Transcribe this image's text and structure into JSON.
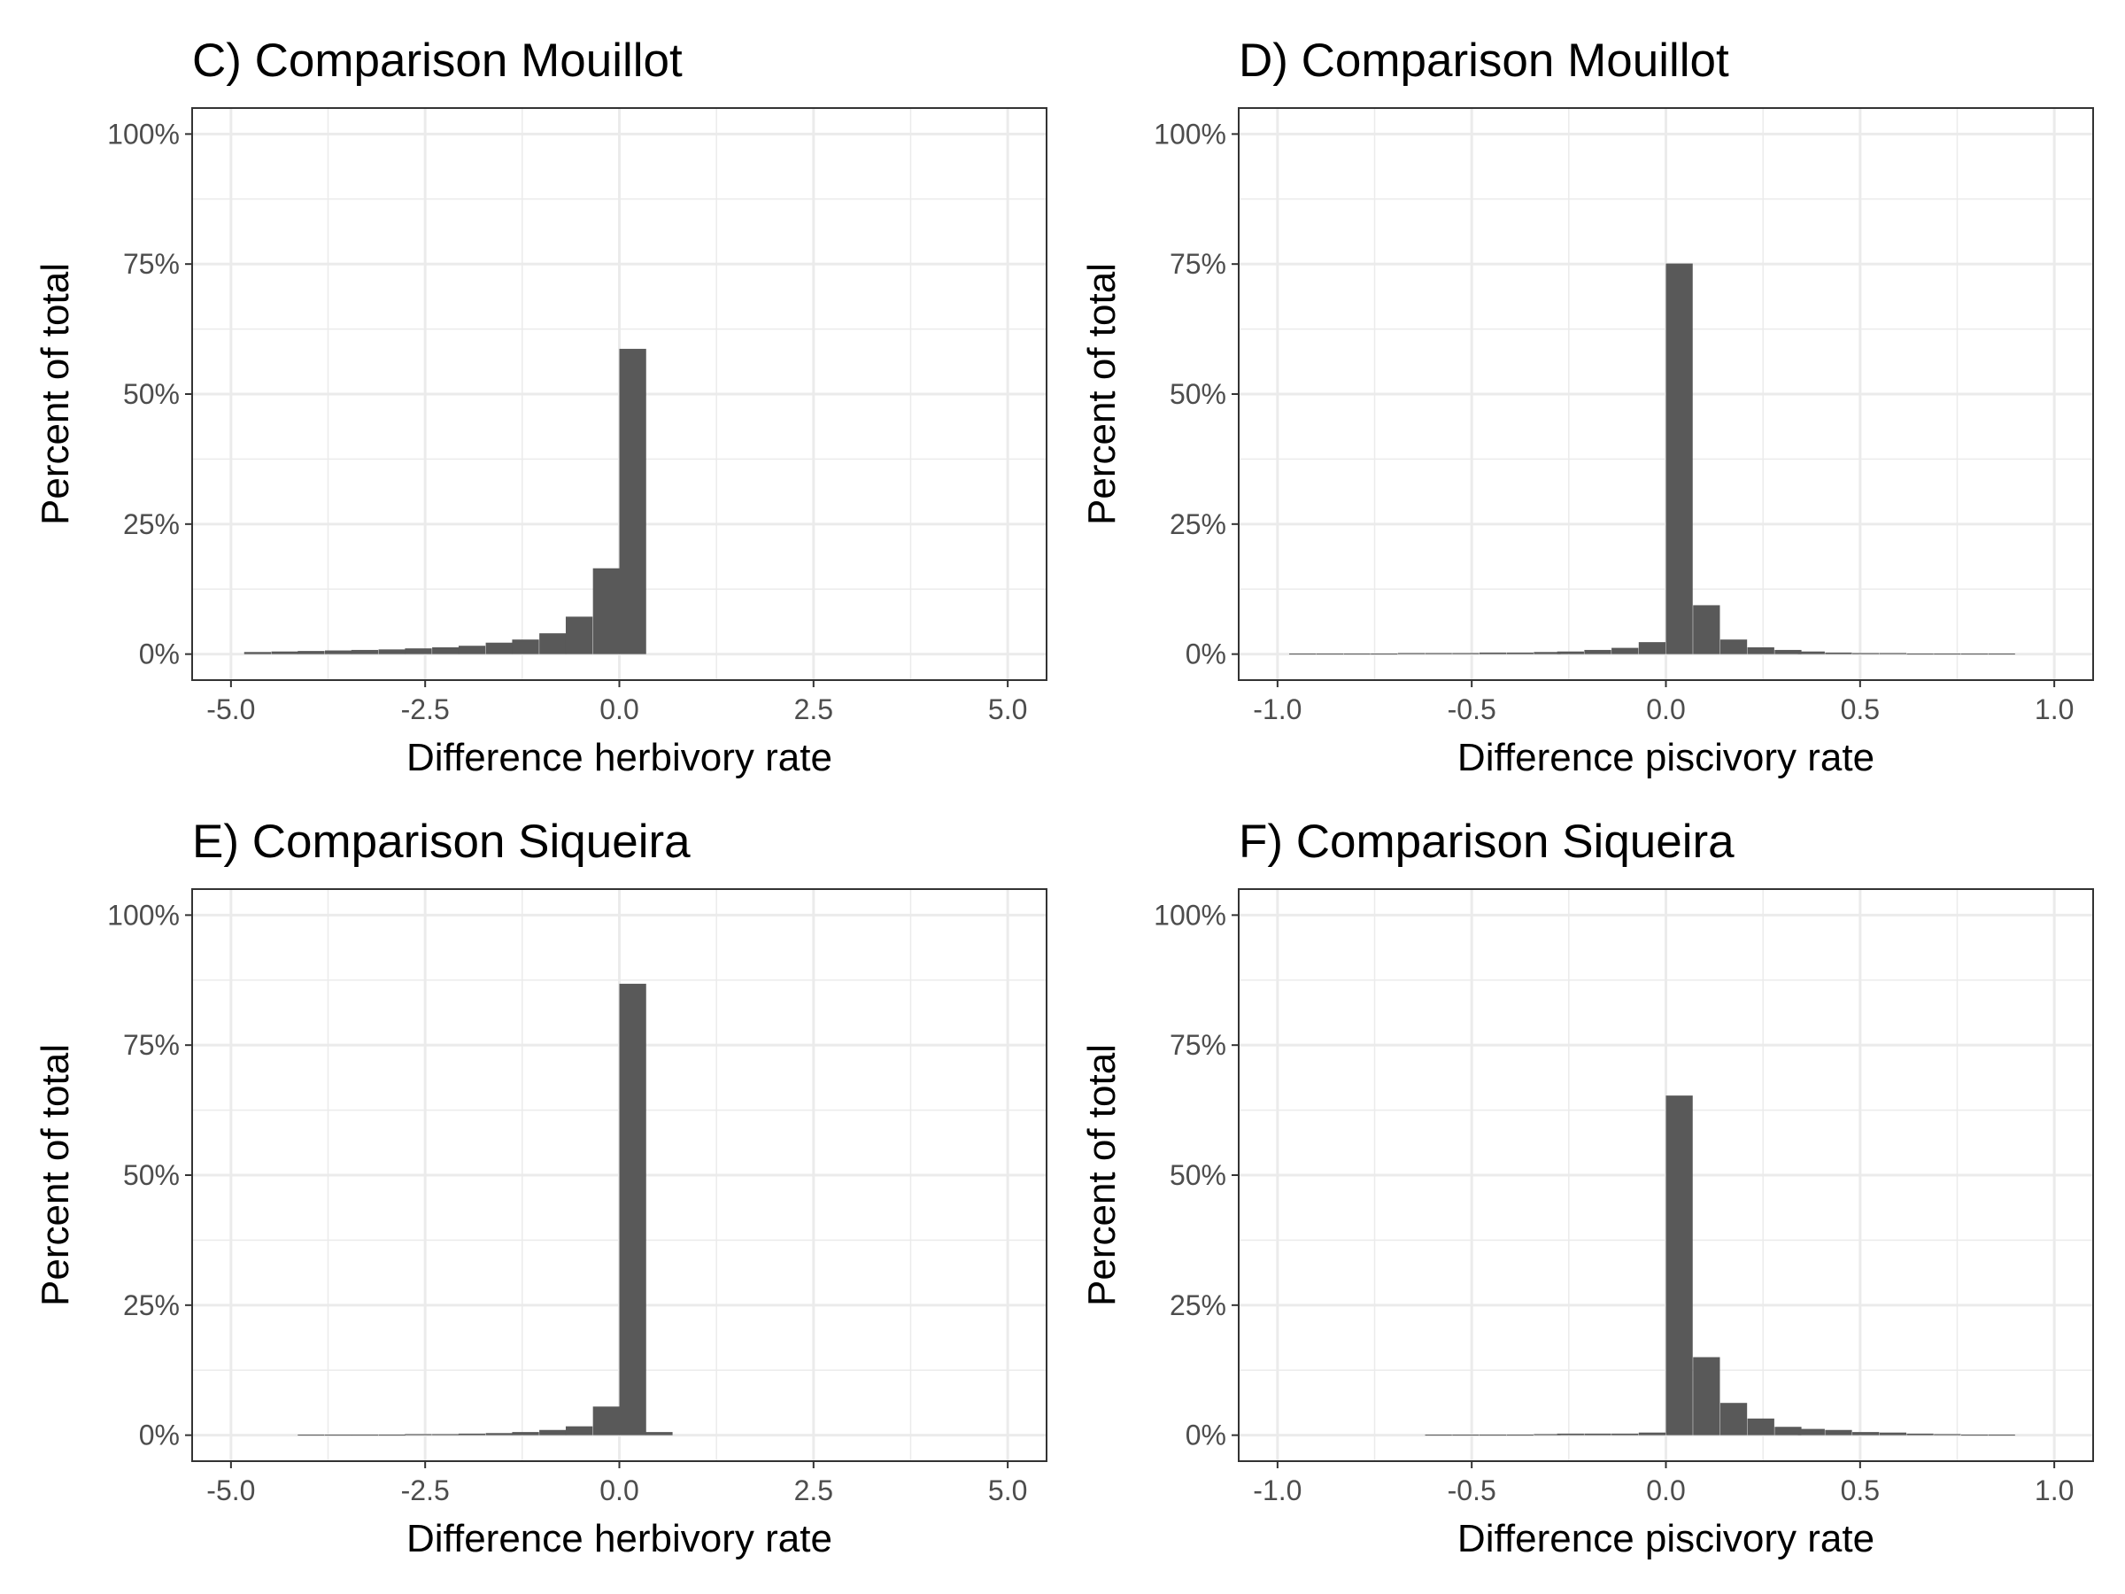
{
  "chart_data": [
    {
      "type": "bar",
      "title": "C) Comparison Mouillot",
      "xlabel": "Difference herbivory rate",
      "ylabel": "Percent of total",
      "xlim": [
        -5.0,
        5.0
      ],
      "ylim": [
        0,
        100
      ],
      "x_ticks": [
        "-5.0",
        "-2.5",
        "0.0",
        "2.5",
        "5.0"
      ],
      "y_ticks": [
        "0%",
        "25%",
        "50%",
        "75%",
        "100%"
      ],
      "bin_width": 0.345,
      "bin_starts": [
        -4.83,
        -4.48,
        -4.14,
        -3.79,
        -3.45,
        -3.1,
        -2.76,
        -2.41,
        -2.07,
        -1.72,
        -1.38,
        -1.03,
        -0.69,
        -0.34,
        0.0
      ],
      "values": [
        0.4,
        0.5,
        0.6,
        0.7,
        0.8,
        0.9,
        1.1,
        1.3,
        1.6,
        2.2,
        2.8,
        4.0,
        7.2,
        16.5,
        58.7
      ],
      "grid": true,
      "bar_color": "#595959"
    },
    {
      "type": "bar",
      "title": "D) Comparison Mouillot",
      "xlabel": "Difference piscivory rate",
      "ylabel": "Percent of total",
      "xlim": [
        -1.0,
        1.0
      ],
      "ylim": [
        0,
        100
      ],
      "x_ticks": [
        "-1.0",
        "-0.5",
        "0.0",
        "0.5",
        "1.0"
      ],
      "y_ticks": [
        "0%",
        "25%",
        "50%",
        "75%",
        "100%"
      ],
      "bin_width": 0.069,
      "bin_starts": [
        -0.97,
        -0.9,
        -0.83,
        -0.76,
        -0.69,
        -0.62,
        -0.55,
        -0.48,
        -0.41,
        -0.34,
        -0.28,
        -0.21,
        -0.14,
        -0.07,
        0.0,
        0.07,
        0.14,
        0.21,
        0.28,
        0.34,
        0.41,
        0.48,
        0.55,
        0.62,
        0.69,
        0.76,
        0.83
      ],
      "values": [
        0.1,
        0.1,
        0.1,
        0.1,
        0.2,
        0.2,
        0.2,
        0.3,
        0.3,
        0.4,
        0.5,
        0.8,
        1.2,
        2.3,
        75.1,
        9.4,
        2.8,
        1.3,
        0.8,
        0.5,
        0.3,
        0.2,
        0.2,
        0.1,
        0.1,
        0.1,
        0.1
      ],
      "grid": true,
      "bar_color": "#595959"
    },
    {
      "type": "bar",
      "title": "E) Comparison Siqueira",
      "xlabel": "Difference herbivory rate",
      "ylabel": "Percent of total",
      "xlim": [
        -5.0,
        5.0
      ],
      "ylim": [
        0,
        100
      ],
      "x_ticks": [
        "-5.0",
        "-2.5",
        "0.0",
        "2.5",
        "5.0"
      ],
      "y_ticks": [
        "0%",
        "25%",
        "50%",
        "75%",
        "100%"
      ],
      "bin_width": 0.345,
      "bin_starts": [
        -4.14,
        -3.79,
        -3.45,
        -3.1,
        -2.76,
        -2.41,
        -2.07,
        -1.72,
        -1.38,
        -1.03,
        -0.69,
        -0.34,
        0.0,
        0.34
      ],
      "values": [
        0.1,
        0.1,
        0.1,
        0.1,
        0.2,
        0.2,
        0.3,
        0.4,
        0.6,
        1.0,
        1.7,
        5.5,
        86.8,
        0.6
      ],
      "grid": true,
      "bar_color": "#595959"
    },
    {
      "type": "bar",
      "title": "F) Comparison Siqueira",
      "xlabel": "Difference piscivory rate",
      "ylabel": "Percent of total",
      "xlim": [
        -1.0,
        1.0
      ],
      "ylim": [
        0,
        100
      ],
      "x_ticks": [
        "-1.0",
        "-0.5",
        "0.0",
        "0.5",
        "1.0"
      ],
      "y_ticks": [
        "0%",
        "25%",
        "50%",
        "75%",
        "100%"
      ],
      "bin_width": 0.069,
      "bin_starts": [
        -0.62,
        -0.55,
        -0.48,
        -0.41,
        -0.34,
        -0.28,
        -0.21,
        -0.14,
        -0.07,
        0.0,
        0.07,
        0.14,
        0.21,
        0.28,
        0.34,
        0.41,
        0.48,
        0.55,
        0.62,
        0.69,
        0.76,
        0.83
      ],
      "values": [
        0.1,
        0.1,
        0.1,
        0.1,
        0.2,
        0.3,
        0.3,
        0.3,
        0.5,
        65.3,
        15.0,
        6.2,
        3.2,
        1.6,
        1.2,
        1.0,
        0.6,
        0.5,
        0.3,
        0.2,
        0.1,
        0.1
      ],
      "grid": true,
      "bar_color": "#595959"
    }
  ]
}
